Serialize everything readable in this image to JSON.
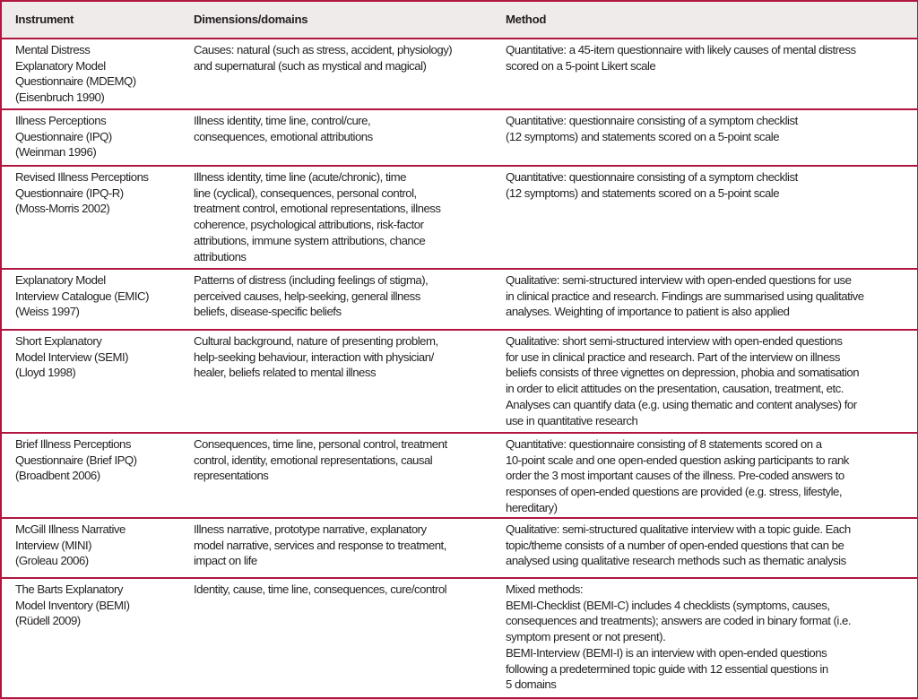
{
  "headers": [
    "Instrument",
    "Dimensions/domains",
    "Method"
  ],
  "rows": [
    {
      "instrument": "Mental Distress\nExplanatory Model\nQuestionnaire (MDEMQ)\n(Eisenbruch 1990)",
      "dimensions": "Causes: natural (such as stress, accident, physiology)\nand supernatural (such as mystical and magical)",
      "method": "Quantitative: a 45-item questionnaire with likely causes of mental distress\nscored on a 5-point Likert scale"
    },
    {
      "instrument": "Illness Perceptions\nQuestionnaire (IPQ)\n(Weinman 1996)",
      "dimensions": "Illness identity, time line, control/cure,\nconsequences, emotional attributions",
      "method": "Quantitative: questionnaire consisting of a symptom checklist\n(12 symptoms) and statements scored on a 5-point scale"
    },
    {
      "instrument": "Revised Illness Perceptions\nQuestionnaire (IPQ-R)\n(Moss-Morris 2002)",
      "dimensions": "Illness identity, time line (acute/chronic), time\nline (cyclical), consequences, personal control,\ntreatment control, emotional representations, illness\ncoherence, psychological attributions, risk-factor\nattributions, immune system attributions, chance\nattributions",
      "method": "Quantitative: questionnaire consisting of a symptom checklist\n(12 symptoms) and statements scored on a 5-point scale"
    },
    {
      "instrument": "Explanatory Model\nInterview Catalogue (EMIC)\n(Weiss 1997)",
      "dimensions": "Patterns of distress (including feelings of stigma),\nperceived causes, help-seeking, general illness\nbeliefs, disease-specific beliefs",
      "method": "Qualitative: semi-structured interview with open-ended questions for use\nin clinical practice and research. Findings are summarised using qualitative\nanalyses. Weighting of importance to patient is also applied"
    },
    {
      "instrument": "Short Explanatory\nModel Interview (SEMI)\n(Lloyd 1998)",
      "dimensions": "Cultural background, nature of presenting problem,\nhelp-seeking behaviour, interaction with physician/\nhealer, beliefs related to mental illness",
      "method": "Qualitative: short semi-structured interview with open-ended questions\nfor use in clinical practice and research. Part of the interview on illness\nbeliefs consists of three vignettes on depression, phobia and somatisation\nin order to elicit attitudes on the presentation, causation, treatment, etc.\nAnalyses can quantify data (e.g. using thematic and content analyses) for\nuse in quantitative research"
    },
    {
      "instrument": "Brief Illness Perceptions\nQuestionnaire (Brief IPQ)\n(Broadbent 2006)",
      "dimensions": "Consequences, time line, personal control, treatment\ncontrol, identity, emotional representations, causal\nrepresentations",
      "method": "Quantitative: questionnaire consisting of 8 statements scored on a\n10-point scale and one open-ended question asking participants to rank\norder the 3 most important causes of the illness. Pre-coded answers to\nresponses of open-ended questions are provided (e.g. stress, lifestyle,\nhereditary)"
    },
    {
      "instrument": "McGill Illness Narrative\nInterview (MINI)\n(Groleau 2006)",
      "dimensions": "Illness narrative, prototype narrative, explanatory\nmodel narrative, services and response to treatment,\nimpact on life",
      "method": "Qualitative: semi-structured qualitative interview with a topic guide. Each\ntopic/theme consists of a number of open-ended questions that can be\nanalysed using qualitative research methods such as thematic analysis"
    },
    {
      "instrument": "The Barts Explanatory\nModel Inventory (BEMI)\n(Rüdell 2009)",
      "dimensions": "Identity, cause, time line, consequences, cure/control",
      "method": "Mixed methods:\nBEMI-Checklist (BEMI-C) includes 4 checklists (symptoms, causes,\nconsequences and treatments); answers are coded in binary format (i.e.\nsymptom present or not present).\nBEMI-Interview (BEMI-I) is an interview with open-ended questions\nfollowing a predetermined topic guide with 12 essential questions in\n5 domains"
    }
  ]
}
